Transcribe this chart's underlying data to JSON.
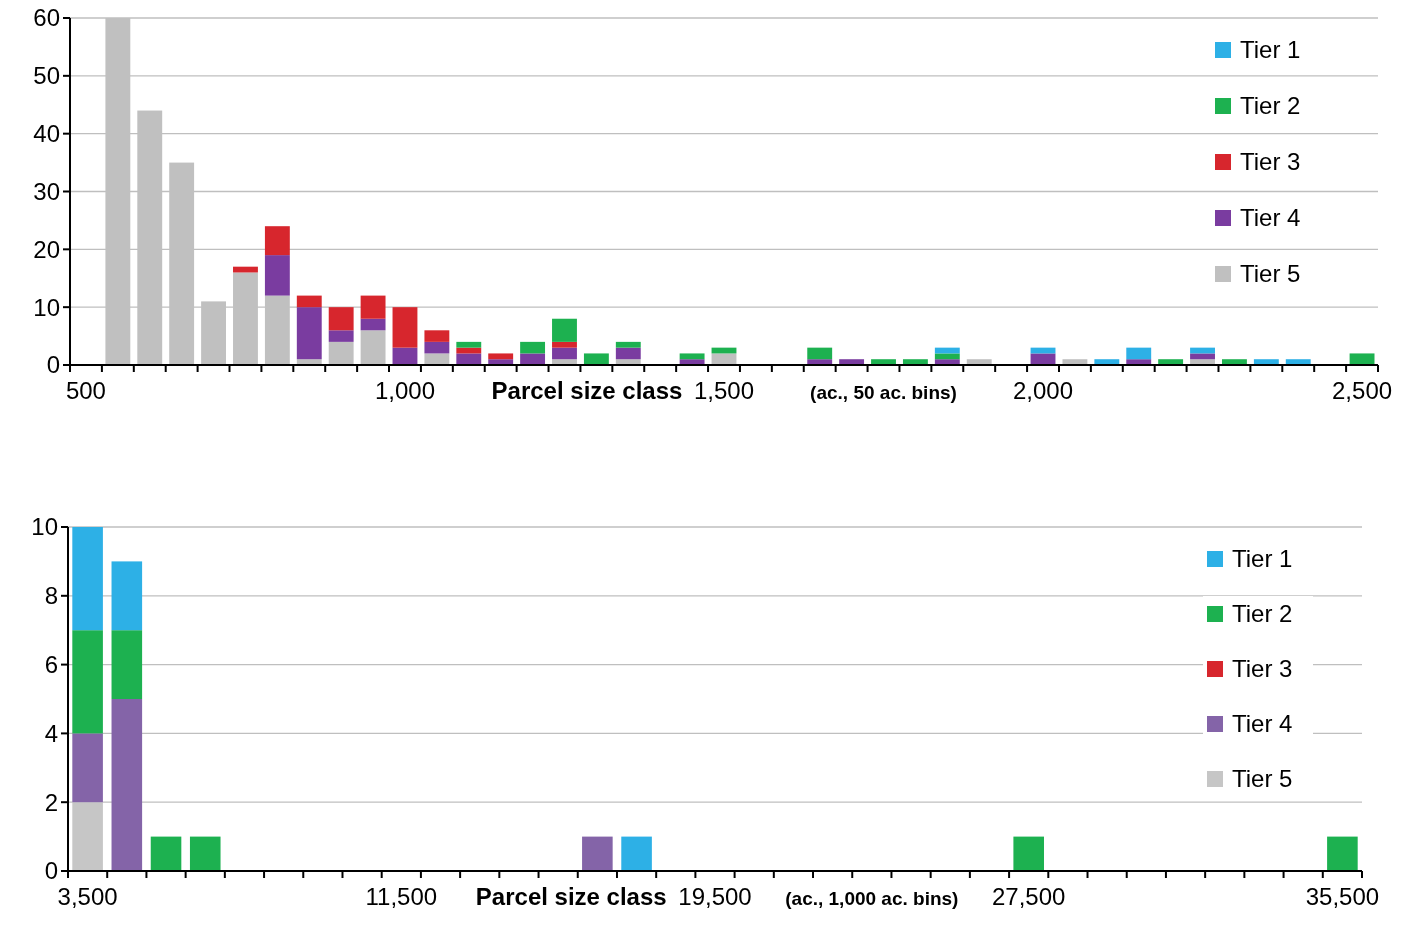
{
  "chart_data": [
    {
      "type": "bar",
      "stacked": true,
      "xlabel": "Parcel size class",
      "annotations": [
        "(ac., 50 ac. bins)"
      ],
      "categories": [
        "500",
        null,
        null,
        null,
        null,
        null,
        null,
        null,
        null,
        null,
        "1,000",
        null,
        null,
        null,
        null,
        null,
        null,
        null,
        null,
        null,
        "1,500",
        null,
        null,
        null,
        null,
        null,
        null,
        null,
        null,
        null,
        "2,000",
        null,
        null,
        null,
        null,
        null,
        null,
        null,
        null,
        null,
        "2,500"
      ],
      "series": [
        {
          "name": "Tier 5",
          "color": "#c0c0c0",
          "values": [
            0,
            60,
            44,
            35,
            11,
            16,
            12,
            1,
            4,
            6,
            0,
            2,
            0,
            0,
            0,
            1,
            0,
            1,
            0,
            0,
            2,
            0,
            0,
            0,
            0,
            0,
            0,
            0,
            1,
            0,
            0,
            1,
            0,
            0,
            0,
            1,
            0,
            0,
            0,
            0,
            0
          ]
        },
        {
          "name": "Tier 4",
          "color": "#7a3ca0",
          "values": [
            0,
            0,
            0,
            0,
            0,
            0,
            7,
            9,
            2,
            2,
            3,
            2,
            2,
            1,
            2,
            2,
            0,
            2,
            0,
            1,
            0,
            0,
            0,
            1,
            1,
            0,
            0,
            1,
            0,
            0,
            2,
            0,
            0,
            1,
            0,
            1,
            0,
            0,
            0,
            0,
            0
          ]
        },
        {
          "name": "Tier 3",
          "color": "#d7262d",
          "values": [
            0,
            0,
            0,
            0,
            0,
            1,
            5,
            2,
            4,
            4,
            7,
            2,
            1,
            1,
            0,
            1,
            0,
            0,
            0,
            0,
            0,
            0,
            0,
            0,
            0,
            0,
            0,
            0,
            0,
            0,
            0,
            0,
            0,
            0,
            0,
            0,
            0,
            0,
            0,
            0,
            0
          ]
        },
        {
          "name": "Tier 2",
          "color": "#1db150",
          "values": [
            0,
            0,
            0,
            0,
            0,
            0,
            0,
            0,
            0,
            0,
            0,
            0,
            1,
            0,
            2,
            4,
            2,
            1,
            0,
            1,
            1,
            0,
            0,
            2,
            0,
            1,
            1,
            1,
            0,
            0,
            0,
            0,
            0,
            0,
            1,
            0,
            1,
            0,
            0,
            0,
            2
          ]
        },
        {
          "name": "Tier 1",
          "color": "#2db0e6",
          "values": [
            0,
            0,
            0,
            0,
            0,
            0,
            0,
            0,
            0,
            0,
            0,
            0,
            0,
            0,
            0,
            0,
            0,
            0,
            0,
            0,
            0,
            0,
            0,
            0,
            0,
            0,
            0,
            1,
            0,
            0,
            1,
            0,
            1,
            2,
            0,
            1,
            0,
            1,
            1,
            0,
            0
          ]
        }
      ],
      "ylim": [
        0,
        60
      ],
      "yticks": [
        0,
        10,
        20,
        30,
        40,
        50,
        60
      ],
      "grid": "y",
      "legend": "top right"
    },
    {
      "type": "bar",
      "stacked": true,
      "xlabel": "Parcel size class",
      "annotations": [
        "(ac., 1,000 ac. bins)"
      ],
      "categories": [
        "3,500",
        null,
        null,
        null,
        null,
        null,
        null,
        null,
        "11,500",
        null,
        null,
        null,
        null,
        null,
        null,
        null,
        "19,500",
        null,
        null,
        null,
        null,
        null,
        null,
        null,
        "27,500",
        null,
        null,
        null,
        null,
        null,
        null,
        null,
        "35,500"
      ],
      "series": [
        {
          "name": "Tier 5",
          "color": "#c6c6c6",
          "values": [
            2,
            0,
            0,
            0,
            0,
            0,
            0,
            0,
            0,
            0,
            0,
            0,
            0,
            0,
            0,
            0,
            0,
            0,
            0,
            0,
            0,
            0,
            0,
            0,
            0,
            0,
            0,
            0,
            0,
            0,
            0,
            0,
            0
          ]
        },
        {
          "name": "Tier 4",
          "color": "#8464a8",
          "values": [
            2,
            5,
            0,
            0,
            0,
            0,
            0,
            0,
            0,
            0,
            0,
            0,
            0,
            1,
            0,
            0,
            0,
            0,
            0,
            0,
            0,
            0,
            0,
            0,
            0,
            0,
            0,
            0,
            0,
            0,
            0,
            0,
            0
          ]
        },
        {
          "name": "Tier 3",
          "color": "#d7262d",
          "values": [
            0,
            0,
            0,
            0,
            0,
            0,
            0,
            0,
            0,
            0,
            0,
            0,
            0,
            0,
            0,
            0,
            0,
            0,
            0,
            0,
            0,
            0,
            0,
            0,
            0,
            0,
            0,
            0,
            0,
            0,
            0,
            0,
            0
          ]
        },
        {
          "name": "Tier 2",
          "color": "#1db150",
          "values": [
            3,
            2,
            1,
            1,
            0,
            0,
            0,
            0,
            0,
            0,
            0,
            0,
            0,
            0,
            0,
            0,
            0,
            0,
            0,
            0,
            0,
            0,
            0,
            0,
            1,
            0,
            0,
            0,
            0,
            0,
            0,
            0,
            1
          ]
        },
        {
          "name": "Tier 1",
          "color": "#2db0e6",
          "values": [
            3,
            2,
            0,
            0,
            0,
            0,
            0,
            0,
            0,
            0,
            0,
            0,
            0,
            0,
            1,
            0,
            0,
            0,
            0,
            0,
            0,
            0,
            0,
            0,
            0,
            0,
            0,
            0,
            0,
            0,
            0,
            0,
            0
          ]
        }
      ],
      "ylim": [
        0,
        10
      ],
      "yticks": [
        0,
        2,
        4,
        6,
        8,
        10
      ],
      "grid": "y",
      "legend": "top right"
    }
  ]
}
